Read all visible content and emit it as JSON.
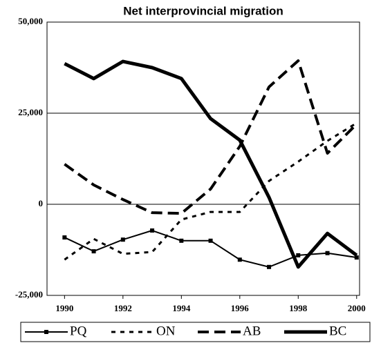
{
  "chart_data": {
    "type": "line",
    "title": "Net interprovincial migration",
    "x": [
      1990,
      1991,
      1992,
      1993,
      1994,
      1995,
      1996,
      1997,
      1998,
      1999,
      2000
    ],
    "xlim": [
      1989.4,
      2000.1
    ],
    "xticks": [
      1990,
      1992,
      1994,
      1996,
      1998,
      2000
    ],
    "ylim": [
      -25000,
      50000
    ],
    "yticks": [
      {
        "value": -25000,
        "label": "-25,000"
      },
      0,
      {
        "value": 25000,
        "label": "25,000"
      },
      {
        "value": 50000,
        "label": "50,000"
      }
    ],
    "grid": true,
    "legend": "bottom",
    "series": [
      {
        "name": "PQ",
        "color": "#000000",
        "values": [
          -9100,
          -12900,
          -9700,
          -7200,
          -10000,
          -10000,
          -15200,
          -17200,
          -14000,
          -13400,
          -14600
        ]
      },
      {
        "name": "ON",
        "color": "#000000",
        "values": [
          -15200,
          -9500,
          -13600,
          -13100,
          -4200,
          -2100,
          -2100,
          6400,
          11700,
          17400,
          22300
        ]
      },
      {
        "name": "AB",
        "color": "#000000",
        "values": [
          11000,
          5300,
          1300,
          -2300,
          -2500,
          4200,
          15900,
          32200,
          39400,
          14000,
          22000
        ]
      },
      {
        "name": "BC",
        "color": "#000000",
        "values": [
          38600,
          34500,
          39200,
          37500,
          34500,
          23500,
          17600,
          1900,
          -17200,
          -8000,
          -14000
        ]
      }
    ]
  }
}
